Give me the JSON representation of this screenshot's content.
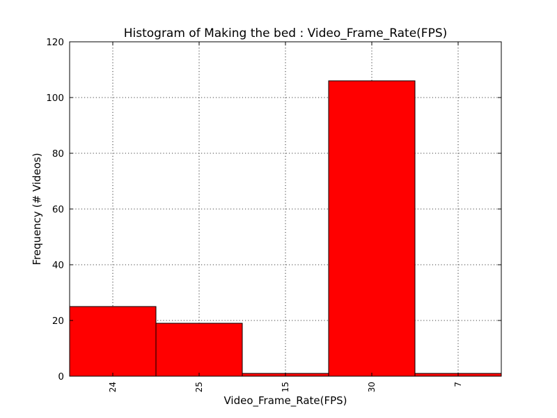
{
  "chart_data": {
    "type": "bar",
    "title": "Histogram of Making the bed : Video_Frame_Rate(FPS)",
    "xlabel": "Video_Frame_Rate(FPS)",
    "ylabel": "Frequency (# Videos)",
    "categories": [
      "24",
      "25",
      "15",
      "30",
      "7"
    ],
    "values": [
      25,
      19,
      1,
      106,
      1
    ],
    "ylim": [
      0,
      120
    ],
    "yticks": [
      0,
      20,
      40,
      60,
      80,
      100,
      120
    ],
    "grid": true,
    "bar_color": "#ff0000",
    "edge_color": "#000000"
  }
}
